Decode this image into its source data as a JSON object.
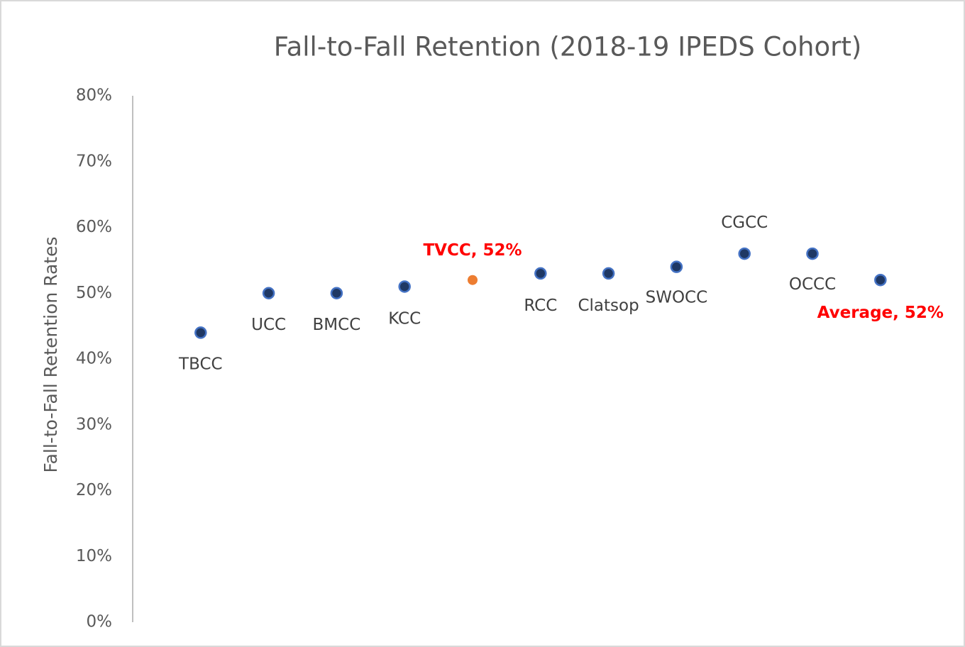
{
  "chart_data": {
    "type": "scatter",
    "title": "Fall-to-Fall Retention (2018-19 IPEDS Cohort)",
    "y_label": "Fall-to-Fall Retention Rates",
    "categories": [
      "TBCC",
      "UCC",
      "BMCC",
      "KCC",
      "TVCC, 52%",
      "RCC",
      "Clatsop",
      "SWOCC",
      "CGCC",
      "OCCC",
      "Average, 52%"
    ],
    "values": [
      44,
      50,
      50,
      51,
      52,
      53,
      53,
      54,
      56,
      56,
      52
    ],
    "colors": [
      "#1f3864",
      "#1f3864",
      "#1f3864",
      "#1f3864",
      "#ed7d31",
      "#1f3864",
      "#1f3864",
      "#1f3864",
      "#1f3864",
      "#1f3864",
      "#1f3864"
    ],
    "label_colors": [
      "#404040",
      "#404040",
      "#404040",
      "#404040",
      "#ff0000",
      "#404040",
      "#404040",
      "#404040",
      "#404040",
      "#404040",
      "#ff0000"
    ],
    "ylim": [
      0,
      80
    ],
    "yticks": [
      {
        "value": 0,
        "label": "0%"
      },
      {
        "value": 10,
        "label": "10%"
      },
      {
        "value": 20,
        "label": "20%"
      },
      {
        "value": 30,
        "label": "30%"
      },
      {
        "value": 40,
        "label": "40%"
      },
      {
        "value": 50,
        "label": "50%"
      },
      {
        "value": 60,
        "label": "60%"
      },
      {
        "value": 70,
        "label": "70%"
      },
      {
        "value": 80,
        "label": "80%"
      }
    ],
    "grid": false
  }
}
